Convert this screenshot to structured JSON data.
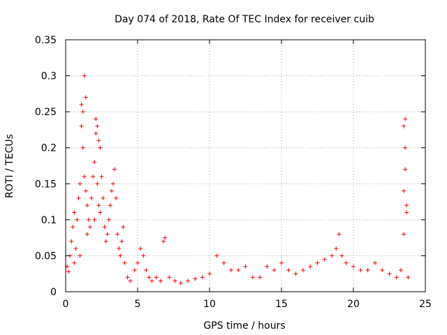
{
  "chart_data": {
    "type": "scatter",
    "title": "Day 074 of 2018, Rate Of TEC Index for receiver cuib",
    "xlabel": "GPS time / hours",
    "ylabel": "ROTI / TECUs",
    "xlim": [
      0,
      25
    ],
    "ylim": [
      0,
      0.35
    ],
    "x_ticks": [
      0,
      5,
      10,
      15,
      20,
      25
    ],
    "x_tick_labels": [
      "0",
      "5",
      "10",
      "15",
      "20",
      "25"
    ],
    "y_ticks": [
      0,
      0.05,
      0.1,
      0.15,
      0.2,
      0.25,
      0.3,
      0.35
    ],
    "y_tick_labels": [
      "0",
      "0.05",
      "0.1",
      "0.15",
      "0.2",
      "0.25",
      "0.3",
      "0.35"
    ],
    "grid": true,
    "marker": "+",
    "series_color": "#ff0000",
    "series": [
      {
        "name": "ROTI",
        "points": [
          [
            0.1,
            0.035
          ],
          [
            0.2,
            0.028
          ],
          [
            0.3,
            0.05
          ],
          [
            0.4,
            0.07
          ],
          [
            0.5,
            0.09
          ],
          [
            0.6,
            0.11
          ],
          [
            0.6,
            0.04
          ],
          [
            0.7,
            0.06
          ],
          [
            0.8,
            0.1
          ],
          [
            0.9,
            0.13
          ],
          [
            1.0,
            0.15
          ],
          [
            1.0,
            0.05
          ],
          [
            1.1,
            0.26
          ],
          [
            1.1,
            0.23
          ],
          [
            1.2,
            0.25
          ],
          [
            1.2,
            0.2
          ],
          [
            1.3,
            0.3
          ],
          [
            1.3,
            0.16
          ],
          [
            1.4,
            0.27
          ],
          [
            1.4,
            0.14
          ],
          [
            1.5,
            0.12
          ],
          [
            1.5,
            0.08
          ],
          [
            1.6,
            0.1
          ],
          [
            1.7,
            0.09
          ],
          [
            1.8,
            0.13
          ],
          [
            1.9,
            0.16
          ],
          [
            2.0,
            0.18
          ],
          [
            2.0,
            0.1
          ],
          [
            2.1,
            0.24
          ],
          [
            2.1,
            0.22
          ],
          [
            2.2,
            0.23
          ],
          [
            2.2,
            0.15
          ],
          [
            2.3,
            0.21
          ],
          [
            2.3,
            0.12
          ],
          [
            2.4,
            0.2
          ],
          [
            2.4,
            0.11
          ],
          [
            2.5,
            0.16
          ],
          [
            2.6,
            0.13
          ],
          [
            2.7,
            0.09
          ],
          [
            2.8,
            0.07
          ],
          [
            2.9,
            0.08
          ],
          [
            3.0,
            0.1
          ],
          [
            3.1,
            0.12
          ],
          [
            3.2,
            0.14
          ],
          [
            3.3,
            0.15
          ],
          [
            3.4,
            0.17
          ],
          [
            3.5,
            0.13
          ],
          [
            3.6,
            0.08
          ],
          [
            3.7,
            0.06
          ],
          [
            3.8,
            0.05
          ],
          [
            3.9,
            0.07
          ],
          [
            4.0,
            0.09
          ],
          [
            4.1,
            0.04
          ],
          [
            4.3,
            0.02
          ],
          [
            4.5,
            0.015
          ],
          [
            4.8,
            0.03
          ],
          [
            5.0,
            0.04
          ],
          [
            5.2,
            0.06
          ],
          [
            5.4,
            0.05
          ],
          [
            5.6,
            0.03
          ],
          [
            5.8,
            0.02
          ],
          [
            6.0,
            0.015
          ],
          [
            6.3,
            0.02
          ],
          [
            6.6,
            0.015
          ],
          [
            6.8,
            0.07
          ],
          [
            6.9,
            0.075
          ],
          [
            7.2,
            0.02
          ],
          [
            7.6,
            0.015
          ],
          [
            8.0,
            0.012
          ],
          [
            8.5,
            0.015
          ],
          [
            9.0,
            0.018
          ],
          [
            9.5,
            0.02
          ],
          [
            10.0,
            0.025
          ],
          [
            10.5,
            0.05
          ],
          [
            11.0,
            0.04
          ],
          [
            11.5,
            0.03
          ],
          [
            12.0,
            0.03
          ],
          [
            12.5,
            0.035
          ],
          [
            13.0,
            0.02
          ],
          [
            13.5,
            0.02
          ],
          [
            14.0,
            0.035
          ],
          [
            14.5,
            0.03
          ],
          [
            15.0,
            0.04
          ],
          [
            15.5,
            0.03
          ],
          [
            16.0,
            0.025
          ],
          [
            16.5,
            0.03
          ],
          [
            17.0,
            0.035
          ],
          [
            17.5,
            0.04
          ],
          [
            18.0,
            0.045
          ],
          [
            18.5,
            0.05
          ],
          [
            18.8,
            0.06
          ],
          [
            19.0,
            0.08
          ],
          [
            19.2,
            0.05
          ],
          [
            19.5,
            0.04
          ],
          [
            20.0,
            0.035
          ],
          [
            20.5,
            0.03
          ],
          [
            21.0,
            0.03
          ],
          [
            21.5,
            0.04
          ],
          [
            22.0,
            0.03
          ],
          [
            22.5,
            0.025
          ],
          [
            23.0,
            0.02
          ],
          [
            23.3,
            0.03
          ],
          [
            23.5,
            0.08
          ],
          [
            23.5,
            0.14
          ],
          [
            23.5,
            0.23
          ],
          [
            23.6,
            0.24
          ],
          [
            23.6,
            0.2
          ],
          [
            23.6,
            0.17
          ],
          [
            23.7,
            0.12
          ],
          [
            23.7,
            0.11
          ],
          [
            23.8,
            0.02
          ]
        ]
      }
    ]
  }
}
